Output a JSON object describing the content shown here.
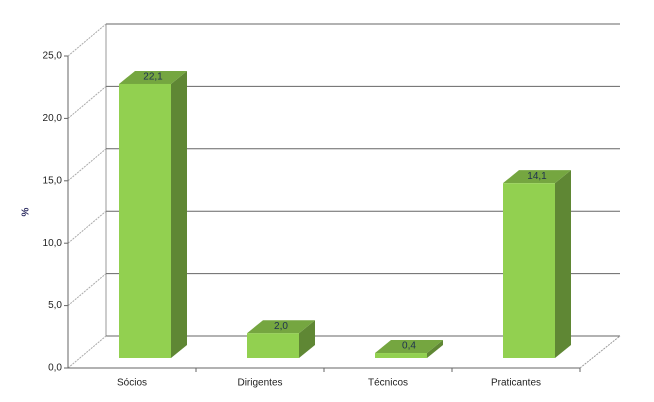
{
  "chart_data": {
    "type": "bar3d",
    "y_label": "%",
    "categories": [
      "Sócios",
      "Dirigentes",
      "Técnicos",
      "Praticantes"
    ],
    "values": [
      22.1,
      2.0,
      0.4,
      14.1
    ],
    "value_labels": [
      "22,1",
      "2,0",
      "0,4",
      "14,1"
    ],
    "color": "#92d050",
    "ylim": [
      0,
      25
    ],
    "yticks": [
      {
        "value": 0,
        "label": "0,0"
      },
      {
        "value": 5,
        "label": "5,0"
      },
      {
        "value": 10,
        "label": "10,0"
      },
      {
        "value": 15,
        "label": "15,0"
      },
      {
        "value": 20,
        "label": "20,0"
      },
      {
        "value": 25,
        "label": "25,0"
      }
    ],
    "grid": true
  }
}
